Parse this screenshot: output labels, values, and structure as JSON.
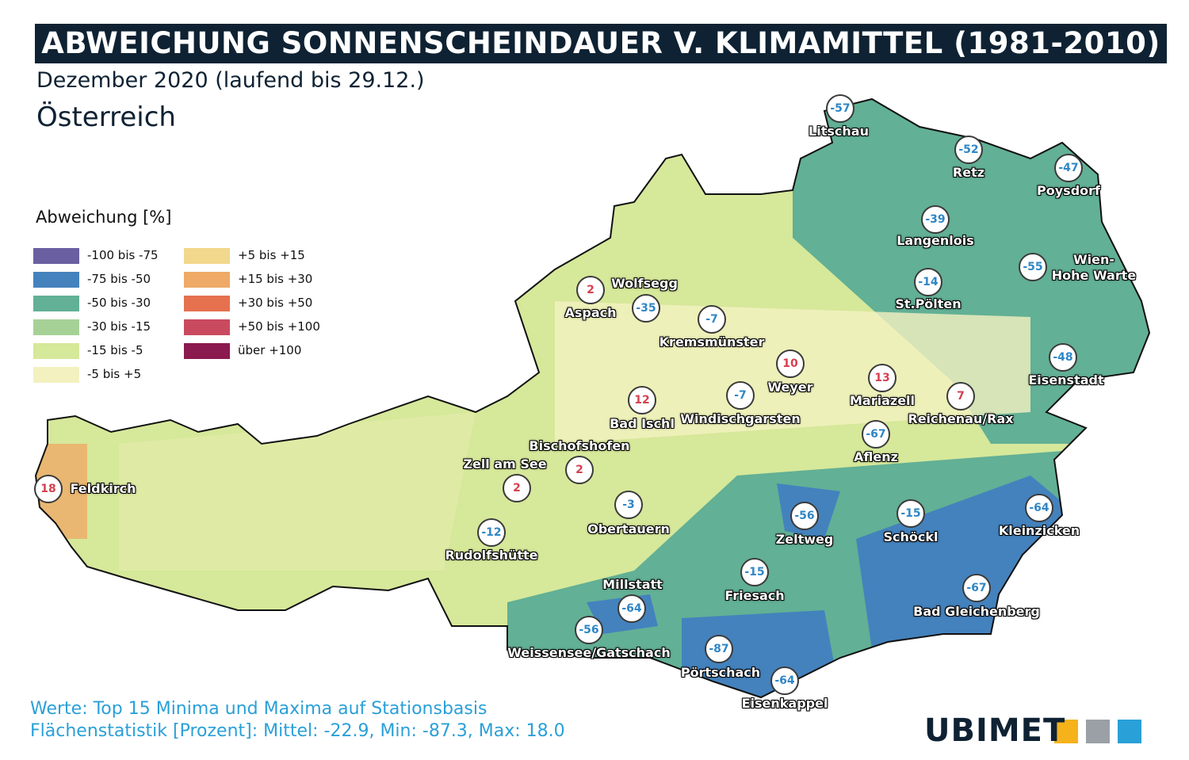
{
  "title": "ABWEICHUNG SONNENSCHEINDAUER V. KLIMAMITTEL (1981-2010)",
  "subtitle": "Dezember 2020 (laufend bis 29.12.)",
  "region": "Österreich",
  "legend": {
    "title": "Abweichung [%]",
    "items": [
      {
        "label": "-100 bis -75",
        "color": "#6a5fa0"
      },
      {
        "label": "-75 bis -50",
        "color": "#4482bd"
      },
      {
        "label": "-50 bis -30",
        "color": "#62b095"
      },
      {
        "label": "-30 bis -15",
        "color": "#a6d196"
      },
      {
        "label": "-15 bis -5",
        "color": "#d6e89a"
      },
      {
        "label": "-5 bis +5",
        "color": "#f4f1c0"
      },
      {
        "label": "+5 bis +15",
        "color": "#f1d88c"
      },
      {
        "label": "+15 bis +30",
        "color": "#eeaa66"
      },
      {
        "label": "+30 bis +50",
        "color": "#e5714f"
      },
      {
        "label": "+50 bis +100",
        "color": "#c94a5e"
      },
      {
        "label": "über +100",
        "color": "#8b1a4f"
      }
    ]
  },
  "stations": [
    {
      "name": "Litschau",
      "value": -57
    },
    {
      "name": "Retz",
      "value": -52
    },
    {
      "name": "Poysdorf",
      "value": -47
    },
    {
      "name": "Langenlois",
      "value": -39
    },
    {
      "name": "Wien-\nHohe Warte",
      "value": -55
    },
    {
      "name": "St.Pölten",
      "value": -14
    },
    {
      "name": "Eisenstadt",
      "value": -48
    },
    {
      "name": "Aspach",
      "value": 2
    },
    {
      "name": "Wolfsegg",
      "value": -35
    },
    {
      "name": "Kremsmünster",
      "value": -7
    },
    {
      "name": "Weyer",
      "value": 10
    },
    {
      "name": "Mariazell",
      "value": 13
    },
    {
      "name": "Reichenau/Rax",
      "value": 7
    },
    {
      "name": "Bad Ischl",
      "value": 12
    },
    {
      "name": "Windischgarsten",
      "value": -7
    },
    {
      "name": "Aflenz",
      "value": -67
    },
    {
      "name": "Bischofshofen",
      "value": 2
    },
    {
      "name": "Zell am See",
      "value": 2
    },
    {
      "name": "Feldkirch",
      "value": 18
    },
    {
      "name": "Obertauern",
      "value": -3
    },
    {
      "name": "Zeltweg",
      "value": -56
    },
    {
      "name": "Schöckl",
      "value": -15
    },
    {
      "name": "Kleinzicken",
      "value": -64
    },
    {
      "name": "Rudolfshütte",
      "value": -12
    },
    {
      "name": "Friesach",
      "value": -15
    },
    {
      "name": "Bad Gleichenberg",
      "value": -67
    },
    {
      "name": "Millstatt",
      "value": -64
    },
    {
      "name": "Weissensee/Gatschach",
      "value": -56
    },
    {
      "name": "Pörtschach",
      "value": -87
    },
    {
      "name": "Eisenkappel",
      "value": -64
    }
  ],
  "footer": [
    "Werte: Top 15 Minima und Maxima auf Stationsbasis",
    "Flächenstatistik [Prozent]: Mittel: -22.9, Min: -87.3, Max: 18.0"
  ],
  "logo": "UBIMET"
}
